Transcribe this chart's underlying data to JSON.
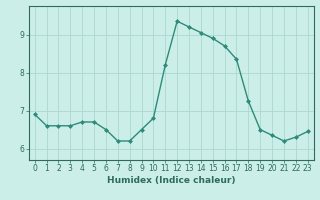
{
  "x": [
    0,
    1,
    2,
    3,
    4,
    5,
    6,
    7,
    8,
    9,
    10,
    11,
    12,
    13,
    14,
    15,
    16,
    17,
    18,
    19,
    20,
    21,
    22,
    23
  ],
  "y": [
    6.9,
    6.6,
    6.6,
    6.6,
    6.7,
    6.7,
    6.5,
    6.2,
    6.2,
    6.5,
    6.8,
    8.2,
    9.35,
    9.2,
    9.05,
    8.9,
    8.7,
    8.35,
    7.25,
    6.5,
    6.35,
    6.2,
    6.3,
    6.45
  ],
  "line_color": "#2e8b7a",
  "marker": "D",
  "markersize": 2.0,
  "linewidth": 1.0,
  "xlabel": "Humidex (Indice chaleur)",
  "xlabel_fontsize": 6.5,
  "xlim": [
    -0.5,
    23.5
  ],
  "ylim": [
    5.7,
    9.75
  ],
  "yticks": [
    6,
    7,
    8,
    9
  ],
  "xticks": [
    0,
    1,
    2,
    3,
    4,
    5,
    6,
    7,
    8,
    9,
    10,
    11,
    12,
    13,
    14,
    15,
    16,
    17,
    18,
    19,
    20,
    21,
    22,
    23
  ],
  "bg_color": "#cceee8",
  "grid_color": "#aad8d0",
  "tick_color": "#2e6b5e",
  "tick_fontsize": 5.5
}
